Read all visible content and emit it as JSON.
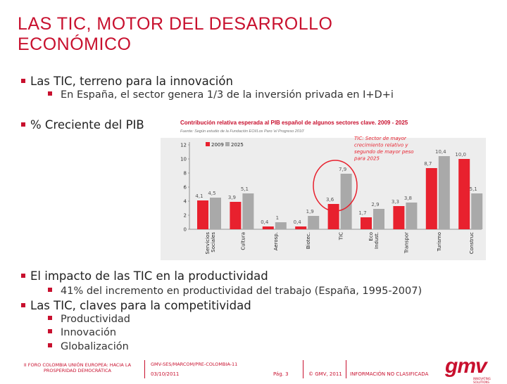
{
  "slide": {
    "title": "LAS TIC, MOTOR DEL DESARROLLO ECONÓMICO",
    "bullets": [
      {
        "text": "Las TIC, terreno para la innovación"
      },
      {
        "text": "En España, el sector genera 1/3 de la inversión privada en I+D+i"
      },
      {
        "text": "% Creciente del PIB"
      },
      {
        "text": "El impacto de las TIC en la productividad"
      },
      {
        "text": "41% del incremento en productividad del trabajo (España, 1995-2007)"
      },
      {
        "text": "Las TIC, claves para la competitividad"
      },
      {
        "text": "Productividad"
      },
      {
        "text": "Innovación"
      },
      {
        "text": "Globalización"
      }
    ]
  },
  "chart_data": {
    "type": "bar",
    "title": "Contribución relativa esperada al PIB español de algunos sectores clave. 2009 - 2025",
    "subtitle": "Fuente: Según estudio de la Fundación EOI/Los Paro 'el Progreso 2010'",
    "categories": [
      "Servicios Sociales",
      "Cultura",
      "Aerosp.",
      "Biotec.",
      "TIC",
      "Eco Indust.",
      "Transpor",
      "Turismo",
      "Construc"
    ],
    "series": [
      {
        "name": "2009",
        "color": "#e8212e",
        "values": [
          4.1,
          3.9,
          0.4,
          0.4,
          3.6,
          1.7,
          3.3,
          8.7,
          10.0
        ]
      },
      {
        "name": "2025",
        "color": "#a9a9a9",
        "values": [
          4.5,
          5.1,
          1,
          1.9,
          7.9,
          2.9,
          3.8,
          10.4,
          5.1
        ]
      }
    ],
    "value_labels": {
      "2009": [
        "4,1",
        "3,9",
        "0,4",
        "0,4",
        "3,6",
        "1,7",
        "3,3",
        "8,7",
        "10,0"
      ],
      "2025": [
        "4,5",
        "5,1",
        "1",
        "1,9",
        "7,9",
        "2,9",
        "3,8",
        "10,4",
        "5,1"
      ]
    },
    "y_ticks": [
      "0",
      "2",
      "4",
      "6",
      "8",
      "10",
      "12"
    ],
    "ylim": [
      0,
      12
    ],
    "legend": [
      "2009",
      "2025"
    ],
    "legend_position": "top-left",
    "annotation": "TIC: Sector de mayor crecimiento relativo y segundo de mayor peso para 2025",
    "highlight_category": "TIC",
    "highlight_color": "#e8212e"
  },
  "footer": {
    "left_text": "II FORO COLOMBIA UNIÓN EUROPEA: HACIA LA PROSPERIDAD DEMOCRÁTICA",
    "reference": "GMV-SES/MARCOM/PRE-COLOMBIA-11",
    "date": "03/10/2011",
    "page": "Pág. 3",
    "copyright": "© GMV, 2011",
    "classification": "INFORMACIÓN NO CLASIFICADA",
    "logo": "gmv",
    "logo_tagline": "INNOVATING SOLUTIONS"
  }
}
